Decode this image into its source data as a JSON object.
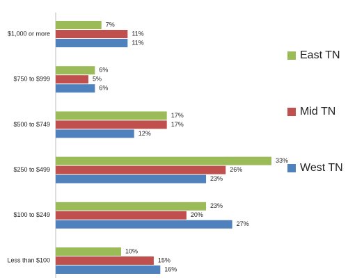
{
  "chart_data": {
    "type": "bar",
    "orientation": "horizontal",
    "categories": [
      "$1,000 or more",
      "$750 to $999",
      "$500 to $749",
      "$250 to $499",
      "$100 to $249",
      "Less than $100"
    ],
    "series": [
      {
        "name": "East TN",
        "color": "#9bbb59",
        "values": [
          7,
          6,
          17,
          33,
          23,
          10
        ],
        "value_labels": [
          "7%",
          "6%",
          "17%",
          "33%",
          "23%",
          "10%"
        ]
      },
      {
        "name": "Mid TN",
        "color": "#c0504d",
        "values": [
          11,
          5,
          17,
          26,
          20,
          15
        ],
        "value_labels": [
          "11%",
          "5%",
          "17%",
          "26%",
          "20%",
          "15%"
        ]
      },
      {
        "name": "West TN",
        "color": "#4f81bd",
        "values": [
          11,
          6,
          12,
          23,
          27,
          16
        ],
        "value_labels": [
          "11%",
          "6%",
          "12%",
          "23%",
          "27%",
          "16%"
        ]
      }
    ],
    "legend": "right"
  }
}
